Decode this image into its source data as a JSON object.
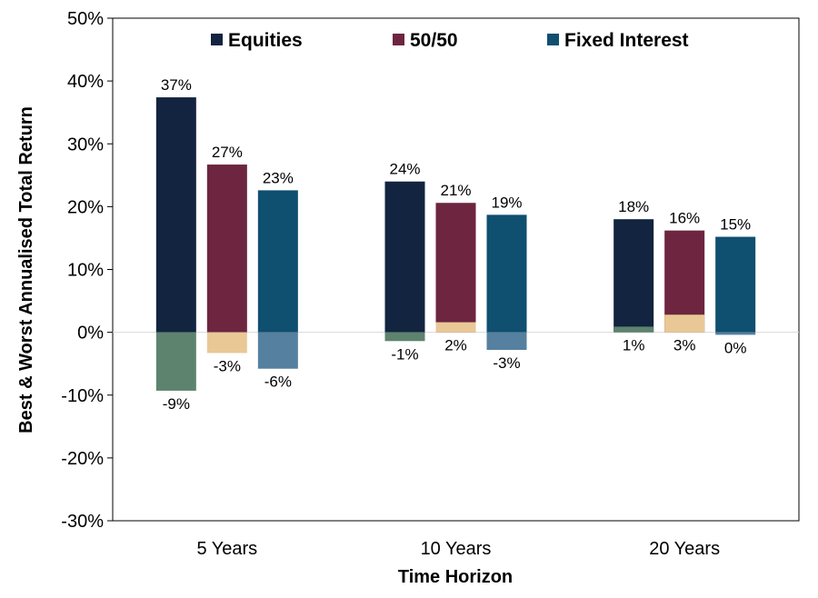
{
  "chart_data": {
    "type": "bar",
    "xlabel": "Time Horizon",
    "ylabel": "Best & Worst Annualised Total Return",
    "ylim": [
      -30,
      50
    ],
    "y_ticks": [
      "50%",
      "40%",
      "30%",
      "20%",
      "10%",
      "0%",
      "-10%",
      "-20%",
      "-30%"
    ],
    "categories": [
      "5 Years",
      "10 Years",
      "20 Years"
    ],
    "legend_position": "top",
    "series": [
      {
        "name": "Equities",
        "best": [
          37.4,
          24.0,
          18.0
        ],
        "worst": [
          -9.3,
          -1.4,
          0.9
        ],
        "best_labels": [
          "37%",
          "24%",
          "18%"
        ],
        "worst_labels": [
          "-9%",
          "-1%",
          "1%"
        ],
        "best_color": "#12243f",
        "worst_color": "#5d836f"
      },
      {
        "name": "50/50",
        "best": [
          26.7,
          20.6,
          16.2
        ],
        "worst": [
          -3.3,
          1.6,
          2.8
        ],
        "best_labels": [
          "27%",
          "21%",
          "16%"
        ],
        "worst_labels": [
          "-3%",
          "2%",
          "3%"
        ],
        "best_color": "#6d2540",
        "worst_color": "#e9c896"
      },
      {
        "name": "Fixed Interest",
        "best": [
          22.6,
          18.7,
          15.2
        ],
        "worst": [
          -5.8,
          -2.8,
          -0.4
        ],
        "best_labels": [
          "23%",
          "19%",
          "15%"
        ],
        "worst_labels": [
          "-6%",
          "-3%",
          "0%"
        ],
        "best_color": "#0f4f6f",
        "worst_color": "#56809f"
      }
    ]
  }
}
